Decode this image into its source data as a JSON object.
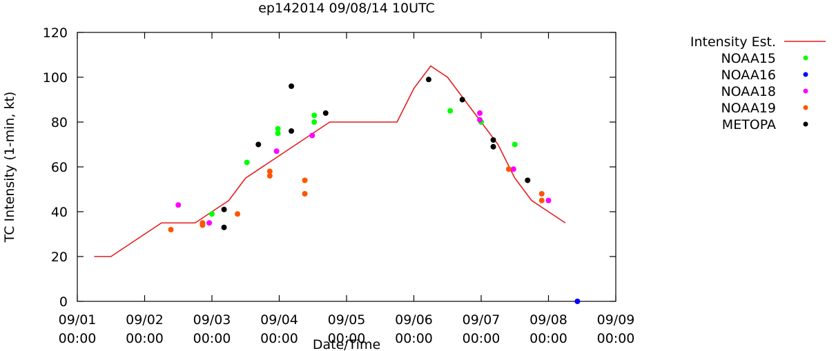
{
  "chart_data": {
    "type": "scatter",
    "title": "ep142014 09/08/14 10UTC",
    "xlabel": "Date/Time",
    "ylabel": "TC Intensity (1-min, kt)",
    "ylim": [
      0,
      120
    ],
    "xlim": [
      0,
      8
    ],
    "x_units": "days since 09/01 00:00",
    "yticks": [
      0,
      20,
      40,
      60,
      80,
      100,
      120
    ],
    "xticks": [
      {
        "value": 0,
        "date": "09/01",
        "time": "00:00"
      },
      {
        "value": 1,
        "date": "09/02",
        "time": "00:00"
      },
      {
        "value": 2,
        "date": "09/03",
        "time": "00:00"
      },
      {
        "value": 3,
        "date": "09/04",
        "time": "00:00"
      },
      {
        "value": 4,
        "date": "09/05",
        "time": "00:00"
      },
      {
        "value": 5,
        "date": "09/06",
        "time": "00:00"
      },
      {
        "value": 6,
        "date": "09/07",
        "time": "00:00"
      },
      {
        "value": 7,
        "date": "09/08",
        "time": "00:00"
      },
      {
        "value": 8,
        "date": "09/09",
        "time": "00:00"
      }
    ],
    "grid": false,
    "legend_position": "outside-right",
    "series": [
      {
        "name": "Intensity Est.",
        "kind": "line",
        "color": "#e41a1c",
        "x": [
          0.25,
          0.5,
          1.25,
          1.75,
          2.0,
          2.25,
          2.5,
          3.0,
          3.25,
          3.5,
          3.75,
          4.0,
          4.25,
          4.5,
          4.75,
          5.0,
          5.25,
          5.5,
          5.75,
          6.0,
          6.25,
          6.5,
          6.75,
          7.0,
          7.25
        ],
        "y": [
          20,
          20,
          35,
          35,
          40,
          45,
          55,
          65,
          70,
          75,
          80,
          80,
          80,
          80,
          80,
          95,
          105,
          100,
          90,
          80,
          70,
          55,
          45,
          40,
          35
        ]
      },
      {
        "name": "NOAA15",
        "kind": "points",
        "color": "#00ff00",
        "x": [
          2.0,
          2.52,
          2.98,
          2.98,
          3.52,
          3.52,
          5.54,
          6.0,
          6.5
        ],
        "y": [
          39,
          62,
          77,
          75,
          83,
          80,
          85,
          80,
          70
        ]
      },
      {
        "name": "NOAA16",
        "kind": "points",
        "color": "#0000ff",
        "x": [
          7.43
        ],
        "y": [
          0
        ]
      },
      {
        "name": "NOAA18",
        "kind": "points",
        "color": "#ff00ff",
        "x": [
          1.5,
          1.96,
          2.96,
          3.49,
          5.98,
          5.98,
          6.48,
          7.0
        ],
        "y": [
          43,
          35,
          67,
          74,
          84,
          81,
          59,
          45
        ]
      },
      {
        "name": "NOAA19",
        "kind": "points",
        "color": "#ff5500",
        "x": [
          1.39,
          1.86,
          1.86,
          2.38,
          2.86,
          2.86,
          3.38,
          3.38,
          6.41,
          6.9,
          6.9
        ],
        "y": [
          32,
          35,
          34,
          39,
          58,
          56,
          54,
          48,
          59,
          48,
          45
        ]
      },
      {
        "name": "METOPA",
        "kind": "points",
        "color": "#000000",
        "x": [
          2.18,
          2.18,
          2.69,
          3.18,
          3.18,
          3.69,
          5.22,
          5.72,
          6.18,
          6.18,
          6.69
        ],
        "y": [
          41,
          33,
          70,
          96,
          76,
          84,
          99,
          90,
          72,
          69,
          54
        ]
      }
    ]
  }
}
